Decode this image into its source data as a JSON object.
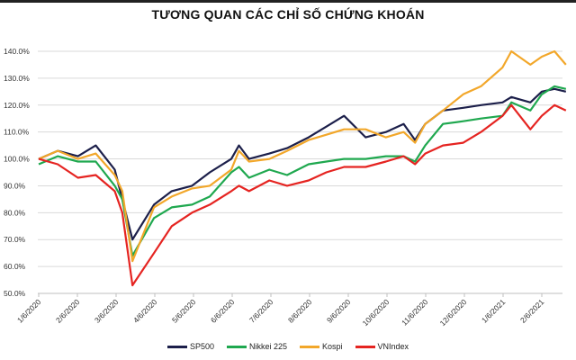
{
  "chart_data": {
    "type": "line",
    "title": "TƯƠNG QUAN CÁC CHỈ SỐ CHỨNG KHOÁN",
    "xlabel": "",
    "ylabel": "",
    "ylim": [
      50,
      140
    ],
    "yticks": [
      "50.0%",
      "60.0%",
      "70.0%",
      "80.0%",
      "90.0%",
      "100.0%",
      "110.0%",
      "120.0%",
      "130.0%",
      "140.0%"
    ],
    "xticks": [
      "1/6/2020",
      "2/6/2020",
      "3/6/2020",
      "4/6/2020",
      "5/6/2020",
      "6/6/2020",
      "7/6/2020",
      "8/6/2020",
      "9/6/2020",
      "10/6/2020",
      "11/6/2020",
      "12/6/2020",
      "1/6/2021",
      "2/6/2021"
    ],
    "grid": "horizontal",
    "legend": "bottom",
    "x": [
      "2020-01-06",
      "2020-01-21",
      "2020-02-06",
      "2020-02-20",
      "2020-03-06",
      "2020-03-12",
      "2020-03-20",
      "2020-04-06",
      "2020-04-20",
      "2020-05-06",
      "2020-05-20",
      "2020-06-06",
      "2020-06-12",
      "2020-06-20",
      "2020-07-06",
      "2020-07-20",
      "2020-08-06",
      "2020-08-20",
      "2020-09-03",
      "2020-09-20",
      "2020-10-06",
      "2020-10-20",
      "2020-10-29",
      "2020-11-06",
      "2020-11-20",
      "2020-12-06",
      "2020-12-20",
      "2021-01-06",
      "2021-01-13",
      "2021-01-28",
      "2021-02-06",
      "2021-02-16",
      "2021-02-25"
    ],
    "series": [
      {
        "name": "SP500",
        "color": "#1c1f4a",
        "values": [
          100,
          103,
          101,
          105,
          96,
          85,
          70,
          83,
          88,
          90,
          95,
          100,
          105,
          100,
          102,
          104,
          108,
          112,
          116,
          108,
          110,
          113,
          107,
          113,
          118,
          119,
          120,
          121,
          123,
          121,
          125,
          126,
          125
        ]
      },
      {
        "name": "Nikkei 225",
        "color": "#1fa84f",
        "values": [
          98,
          101,
          99,
          99,
          90,
          85,
          64,
          78,
          82,
          83,
          86,
          95,
          97,
          93,
          96,
          94,
          98,
          99,
          100,
          100,
          101,
          101,
          99,
          105,
          113,
          114,
          115,
          116,
          121,
          118,
          124,
          127,
          126
        ]
      },
      {
        "name": "Kospi",
        "color": "#f2a72a",
        "values": [
          100,
          103,
          100,
          102,
          94,
          88,
          62,
          82,
          86,
          89,
          90,
          96,
          103,
          99,
          100,
          103,
          107,
          109,
          111,
          111,
          108,
          110,
          106,
          113,
          118,
          124,
          127,
          134,
          140,
          135,
          138,
          140,
          135
        ]
      },
      {
        "name": "VNIndex",
        "color": "#e52421",
        "values": [
          100,
          98,
          93,
          94,
          88,
          80,
          53,
          65,
          75,
          80,
          83,
          88,
          90,
          88,
          92,
          90,
          92,
          95,
          97,
          97,
          99,
          101,
          98,
          102,
          105,
          106,
          110,
          116,
          120,
          111,
          116,
          120,
          118
        ]
      }
    ]
  }
}
